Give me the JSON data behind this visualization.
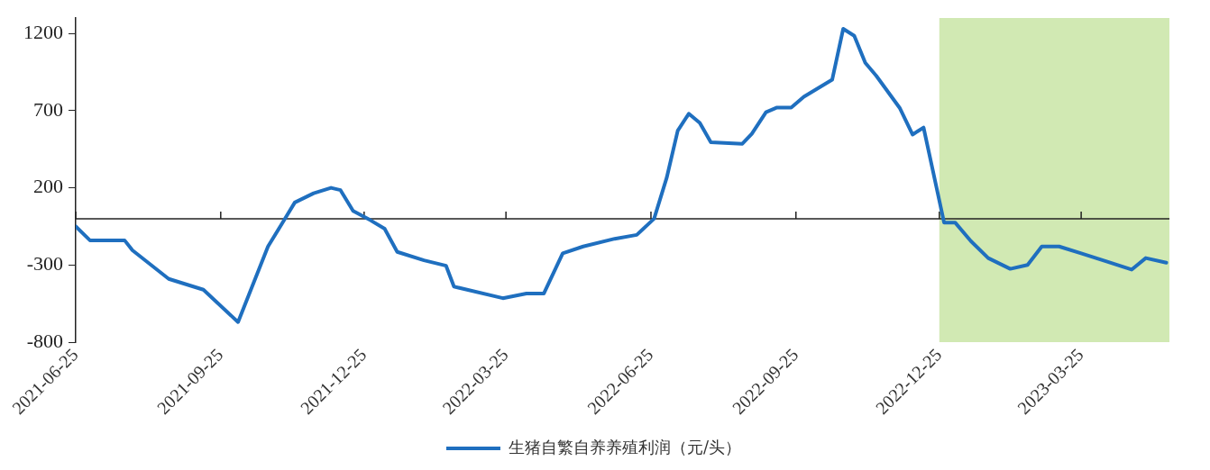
{
  "chart_data": {
    "type": "line",
    "x": [
      "2021-06-25",
      "2021-07-04",
      "2021-07-26",
      "2021-07-31",
      "2021-08-23",
      "2021-09-14",
      "2021-10-06",
      "2021-10-25",
      "2021-11-03",
      "2021-11-11",
      "2021-11-23",
      "2021-12-04",
      "2021-12-10",
      "2021-12-18",
      "2021-12-29",
      "2022-01-07",
      "2022-01-15",
      "2022-02-01",
      "2022-02-15",
      "2022-02-20",
      "2022-03-23",
      "2022-04-07",
      "2022-04-18",
      "2022-04-30",
      "2022-05-13",
      "2022-06-02",
      "2022-06-16",
      "2022-06-27",
      "2022-07-05",
      "2022-07-12",
      "2022-07-19",
      "2022-07-26",
      "2022-08-02",
      "2022-08-22",
      "2022-08-28",
      "2022-09-06",
      "2022-09-13",
      "2022-09-22",
      "2022-09-30",
      "2022-10-18",
      "2022-10-25",
      "2022-11-01",
      "2022-11-08",
      "2022-11-15",
      "2022-11-30",
      "2022-12-08",
      "2022-12-15",
      "2022-12-28",
      "2023-01-04",
      "2023-01-14",
      "2023-01-25",
      "2023-02-08",
      "2023-02-19",
      "2023-02-28",
      "2023-03-11",
      "2023-03-25",
      "2023-04-11",
      "2023-04-26",
      "2023-05-05",
      "2023-05-18"
    ],
    "series": [
      {
        "name": "生猪自繁自养养殖利润（元/头）",
        "color": "#1f6fbf",
        "values": [
          -50,
          -140,
          -140,
          -205,
          -390,
          -460,
          -670,
          -180,
          -30,
          105,
          165,
          200,
          185,
          50,
          -10,
          -65,
          -215,
          -270,
          -305,
          -440,
          -515,
          -485,
          -485,
          -225,
          -180,
          -130,
          -105,
          0,
          265,
          570,
          680,
          620,
          495,
          485,
          550,
          690,
          720,
          720,
          790,
          900,
          1230,
          1185,
          1010,
          925,
          715,
          545,
          590,
          -25,
          -25,
          -145,
          -255,
          -325,
          -300,
          -180,
          -180,
          -225,
          -280,
          -330,
          -255,
          -285
        ]
      }
    ],
    "xlim": [
      "2021-06-25",
      "2023-05-20"
    ],
    "xticks": [
      "2021-06-25",
      "2021-09-25",
      "2021-12-25",
      "2022-03-25",
      "2022-06-25",
      "2022-09-25",
      "2022-12-25",
      "2023-03-25"
    ],
    "ylim": [
      -800,
      1300
    ],
    "yticks": [
      -800,
      -300,
      200,
      700,
      1200
    ],
    "bands": [
      {
        "axis": "x",
        "from": "2022-12-25",
        "to": "2023-05-20",
        "color": "#c5e4a0"
      }
    ],
    "grid": false,
    "legend": "bottom",
    "marker": "none",
    "line_style": "solid"
  }
}
